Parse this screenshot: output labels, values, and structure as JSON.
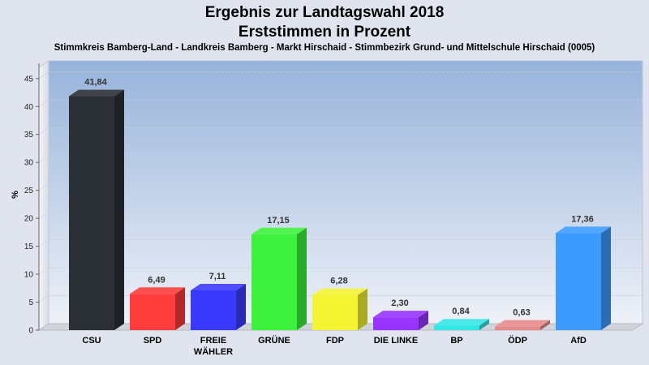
{
  "chart_data": {
    "type": "bar",
    "title": "Ergebnis zur Landtagswahl 2018",
    "subtitle": "Erststimmen in Prozent",
    "caption": "Stimmkreis Bamberg-Land - Landkreis Bamberg - Markt Hirschaid - Stimmbezirk Grund- und Mittelschule Hirschaid (0005)",
    "ylabel": "%",
    "ylim": [
      0,
      47
    ],
    "yticks": [
      0,
      5,
      10,
      15,
      20,
      25,
      30,
      35,
      40,
      45
    ],
    "grid": true,
    "categories": [
      [
        "CSU"
      ],
      [
        "SPD"
      ],
      [
        "FREIE",
        "WÄHLER"
      ],
      [
        "GRÜNE"
      ],
      [
        "FDP"
      ],
      [
        "DIE LINKE"
      ],
      [
        "BP"
      ],
      [
        "ÖDP"
      ],
      [
        "AfD"
      ]
    ],
    "values": [
      41.84,
      6.49,
      7.11,
      17.15,
      6.28,
      2.3,
      0.84,
      0.63,
      17.36
    ],
    "value_labels": [
      "41,84",
      "6,49",
      "7,11",
      "17,15",
      "6,28",
      "2,30",
      "0,84",
      "0,63",
      "17,36"
    ],
    "colors": [
      "#2b2f36",
      "#ff3b3b",
      "#3a3aff",
      "#3cf23c",
      "#f4f432",
      "#9933ff",
      "#33e6e6",
      "#e88a8a",
      "#3d9bff"
    ]
  }
}
